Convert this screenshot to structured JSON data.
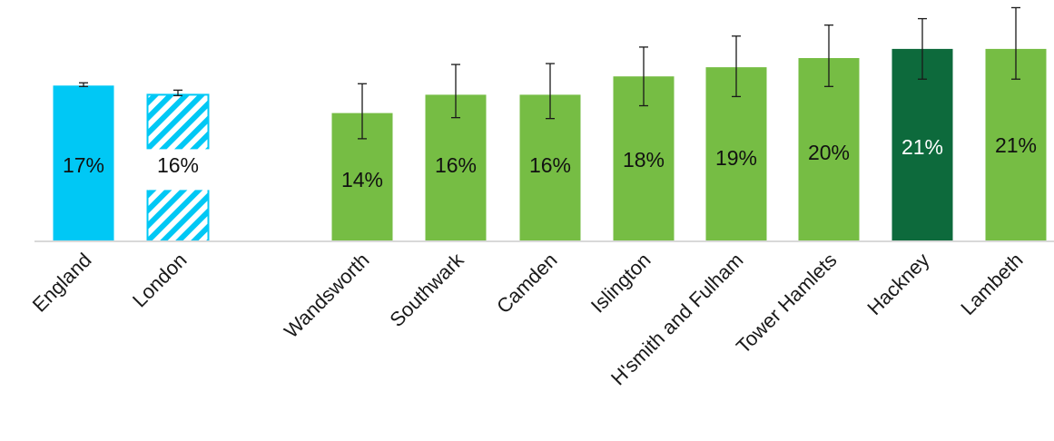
{
  "chart_data": {
    "type": "bar",
    "title": "",
    "xlabel": "",
    "ylabel": "",
    "ylim": [
      0,
      23
    ],
    "grid": false,
    "legend": "none",
    "categories": [
      "England",
      "London",
      "Wandsworth",
      "Southwark",
      "Camden",
      "Islington",
      "H'smith and Fulham",
      "Tower Hamlets",
      "Hackney",
      "Lambeth"
    ],
    "values": [
      17,
      16,
      14,
      16,
      16,
      18,
      19,
      20,
      21,
      21
    ],
    "value_labels": [
      "17%",
      "16%",
      "14%",
      "16%",
      "16%",
      "18%",
      "19%",
      "20%",
      "21%",
      "21%"
    ],
    "error_low": [
      16.9,
      15.9,
      11.2,
      13.5,
      13.4,
      14.8,
      15.8,
      16.9,
      17.7,
      17.7
    ],
    "error_high": [
      17.3,
      16.5,
      17.2,
      19.3,
      19.4,
      21.2,
      22.4,
      23.6,
      24.3,
      25.5
    ],
    "bar_styles": [
      "england",
      "london",
      "borough",
      "borough",
      "borough",
      "borough",
      "borough",
      "borough",
      "highlight",
      "borough"
    ],
    "colors": {
      "england": "#00c8f5",
      "london_hatch": "#00c8f5",
      "borough": "#76bd44",
      "highlight": "#0d6a3c",
      "baseline": "#d9d9d9",
      "error_bar": "#1a1a1a",
      "label_dark": "#111111",
      "label_light": "#ffffff"
    }
  }
}
